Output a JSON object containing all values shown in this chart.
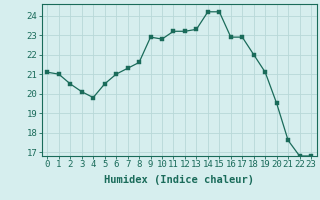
{
  "x": [
    0,
    1,
    2,
    3,
    4,
    5,
    6,
    7,
    8,
    9,
    10,
    11,
    12,
    13,
    14,
    15,
    16,
    17,
    18,
    19,
    20,
    21,
    22,
    23
  ],
  "y": [
    21.1,
    21.0,
    20.5,
    20.1,
    19.8,
    20.5,
    21.0,
    21.3,
    21.6,
    22.9,
    22.8,
    23.2,
    23.2,
    23.3,
    24.2,
    24.2,
    22.9,
    22.9,
    22.0,
    21.1,
    19.5,
    17.6,
    16.8,
    16.8
  ],
  "line_color": "#1a6b5a",
  "marker": "s",
  "marker_size": 2.5,
  "bg_color": "#d6eeee",
  "grid_color": "#b8d8d8",
  "xlabel": "Humidex (Indice chaleur)",
  "xlim": [
    -0.5,
    23.5
  ],
  "ylim": [
    16.8,
    24.6
  ],
  "yticks": [
    17,
    18,
    19,
    20,
    21,
    22,
    23,
    24
  ],
  "xticks": [
    0,
    1,
    2,
    3,
    4,
    5,
    6,
    7,
    8,
    9,
    10,
    11,
    12,
    13,
    14,
    15,
    16,
    17,
    18,
    19,
    20,
    21,
    22,
    23
  ],
  "tick_color": "#1a6b5a",
  "label_fontsize": 7.5,
  "tick_fontsize": 6.5
}
